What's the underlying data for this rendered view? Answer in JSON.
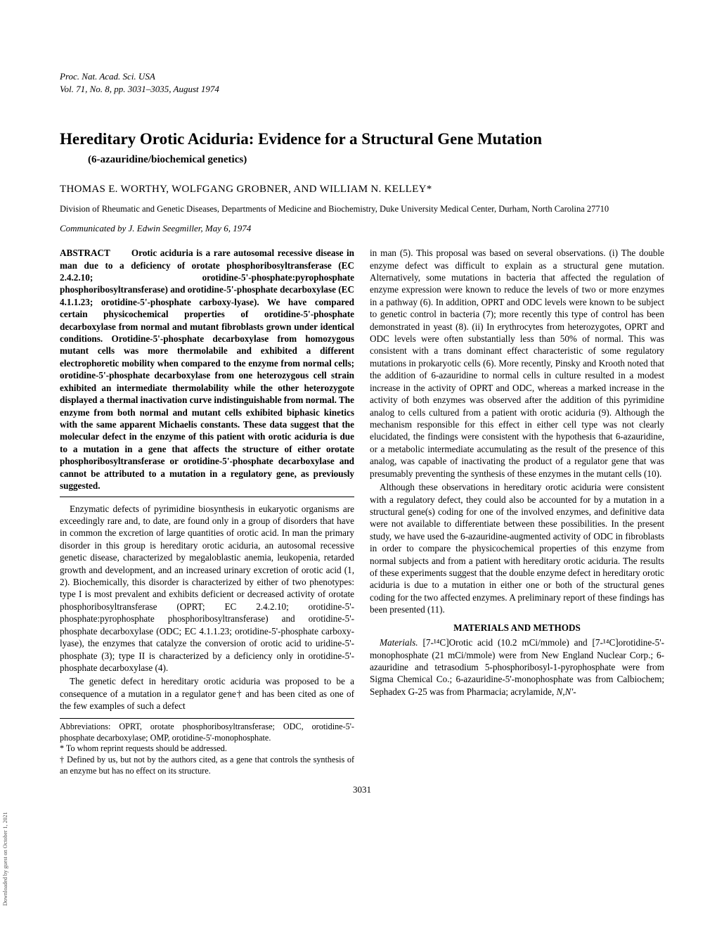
{
  "journal": {
    "line1": "Proc. Nat. Acad. Sci. USA",
    "line2": "Vol. 71, No. 8, pp. 3031–3035, August 1974"
  },
  "title": "Hereditary Orotic Aciduria: Evidence for a Structural Gene Mutation",
  "subtitle": "(6-azauridine/biochemical genetics)",
  "authors": "THOMAS E. WORTHY, WOLFGANG GROBNER, AND WILLIAM N. KELLEY*",
  "affiliation": "Division of Rheumatic and Genetic Diseases, Departments of Medicine and Biochemistry, Duke University Medical Center, Durham, North Carolina 27710",
  "communicated": "Communicated by J. Edwin Seegmiller, May 6, 1974",
  "abstract_label": "ABSTRACT",
  "abstract": "Orotic aciduria is a rare autosomal recessive disease in man due to a deficiency of orotate phosphoribosyltransferase (EC 2.4.2.10; orotidine-5'-phosphate:pyrophosphate phosphoribosyltransferase) and orotidine-5'-phosphate decarboxylase (EC 4.1.1.23; orotidine-5'-phosphate carboxy-lyase). We have compared certain physicochemical properties of orotidine-5'-phosphate decarboxylase from normal and mutant fibroblasts grown under identical conditions. Orotidine-5'-phosphate decarboxylase from homozygous mutant cells was more thermolabile and exhibited a different electrophoretic mobility when compared to the enzyme from normal cells; orotidine-5'-phosphate decarboxylase from one heterozygous cell strain exhibited an intermediate thermolability while the other heterozygote displayed a thermal inactivation curve indistinguishable from normal. The enzyme from both normal and mutant cells exhibited biphasic kinetics with the same apparent Michaelis constants. These data suggest that the molecular defect in the enzyme of this patient with orotic aciduria is due to a mutation in a gene that affects the structure of either orotate phosphoribosyltransferase or orotidine-5'-phosphate decarboxylase and cannot be attributed to a mutation in a regulatory gene, as previously suggested.",
  "intro_p1": "Enzymatic defects of pyrimidine biosynthesis in eukaryotic organisms are exceedingly rare and, to date, are found only in a group of disorders that have in common the excretion of large quantities of orotic acid. In man the primary disorder in this group is hereditary orotic aciduria, an autosomal recessive genetic disease, characterized by megaloblastic anemia, leukopenia, retarded growth and development, and an increased urinary excretion of orotic acid (1, 2). Biochemically, this disorder is characterized by either of two phenotypes: type I is most prevalent and exhibits deficient or decreased activity of orotate phosphoribosyltransferase (OPRT; EC 2.4.2.10; orotidine-5'-phosphate:pyrophosphate phosphoribosyltransferase) and orotidine-5'-phosphate decarboxylase (ODC; EC 4.1.1.23; orotidine-5'-phosphate carboxy-lyase), the enzymes that catalyze the conversion of orotic acid to uridine-5'-phosphate (3); type II is characterized by a deficiency only in orotidine-5'-phosphate decarboxylase (4).",
  "intro_p2": "The genetic defect in hereditary orotic aciduria was proposed to be a consequence of a mutation in a regulator gene† and has been cited as one of the few examples of such a defect",
  "abbreviations": "Abbreviations: OPRT, orotate phosphoribosyltransferase; ODC, orotidine-5'-phosphate decarboxylase; OMP, orotidine-5'-monophosphate.",
  "footnote_star": "* To whom reprint requests should be addressed.",
  "footnote_dagger": "† Defined by us, but not by the authors cited, as a gene that controls the synthesis of an enzyme but has no effect on its structure.",
  "col2_p1": "in man (5). This proposal was based on several observations. (i) The double enzyme defect was difficult to explain as a structural gene mutation. Alternatively, some mutations in bacteria that affected the regulation of enzyme expression were known to reduce the levels of two or more enzymes in a pathway (6). In addition, OPRT and ODC levels were known to be subject to genetic control in bacteria (7); more recently this type of control has been demonstrated in yeast (8). (ii) In erythrocytes from heterozygotes, OPRT and ODC levels were often substantially less than 50% of normal. This was consistent with a trans dominant effect characteristic of some regulatory mutations in prokaryotic cells (6). More recently, Pinsky and Krooth noted that the addition of 6-azauridine to normal cells in culture resulted in a modest increase in the activity of OPRT and ODC, whereas a marked increase in the activity of both enzymes was observed after the addition of this pyrimidine analog to cells cultured from a patient with orotic aciduria (9). Although the mechanism responsible for this effect in either cell type was not clearly elucidated, the findings were consistent with the hypothesis that 6-azauridine, or a metabolic intermediate accumulating as the result of the presence of this analog, was capable of inactivating the product of a regulator gene that was presumably preventing the synthesis of these enzymes in the mutant cells (10).",
  "col2_p2": "Although these observations in hereditary orotic aciduria were consistent with a regulatory defect, they could also be accounted for by a mutation in a structural gene(s) coding for one of the involved enzymes, and definitive data were not available to differentiate between these possibilities. In the present study, we have used the 6-azauridine-augmented activity of ODC in fibroblasts in order to compare the physicochemical properties of this enzyme from normal subjects and from a patient with hereditary orotic aciduria. The results of these experiments suggest that the double enzyme defect in hereditary orotic aciduria is due to a mutation in either one or both of the structural genes coding for the two affected enzymes. A preliminary report of these findings has been presented (11).",
  "materials_head": "MATERIALS AND METHODS",
  "materials_p1": "Materials. [7-¹⁴C]Orotic acid (10.2 mCi/mmole) and [7-¹⁴C]orotidine-5'-monophosphate (21 mCi/mmole) were from New England Nuclear Corp.; 6-azauridine and tetrasodium 5-phosphoribosyl-1-pyrophosphate were from Sigma Chemical Co.; 6-azauridine-5'-monophosphate was from Calbiochem; Sephadex G-25 was from Pharmacia; acrylamide, N,N'-",
  "page_number": "3031",
  "side": "Downloaded by guest on October 1, 2021"
}
